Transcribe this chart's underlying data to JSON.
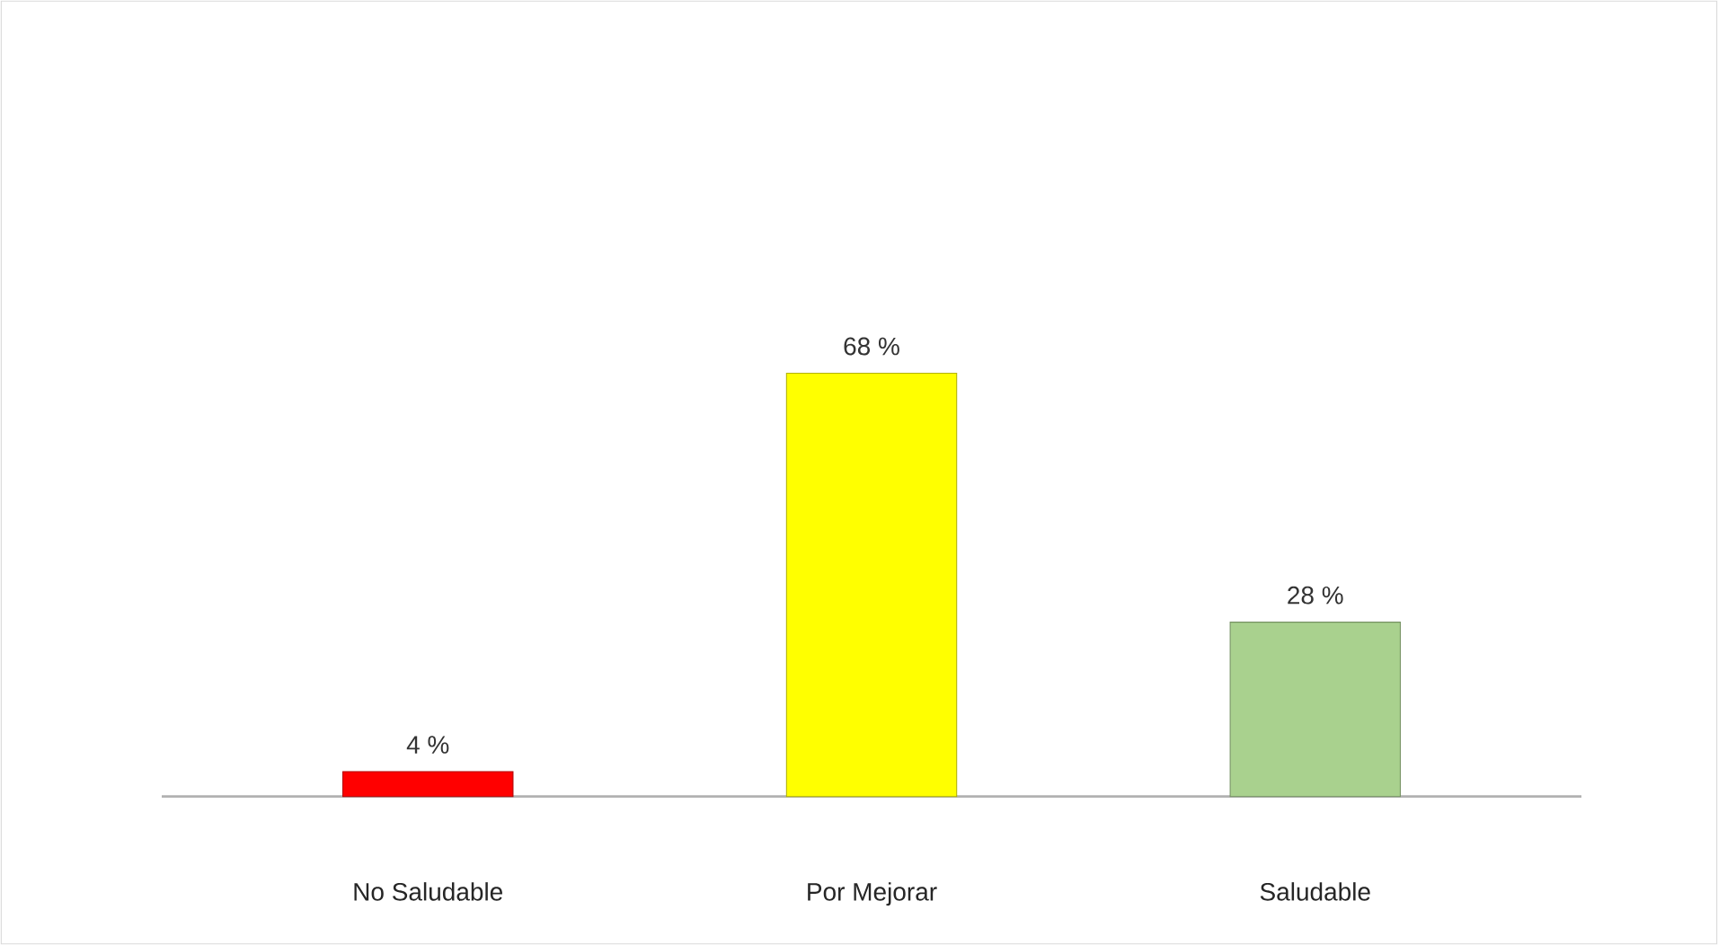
{
  "chart_data": {
    "type": "bar",
    "categories": [
      "No Saludable",
      "Por Mejorar",
      "Saludable"
    ],
    "values": [
      4,
      68,
      28
    ],
    "colors": [
      "#ff0000",
      "#ffff00",
      "#a9d18e"
    ],
    "value_labels": [
      "4 %",
      "68 %",
      "28 %"
    ]
  }
}
